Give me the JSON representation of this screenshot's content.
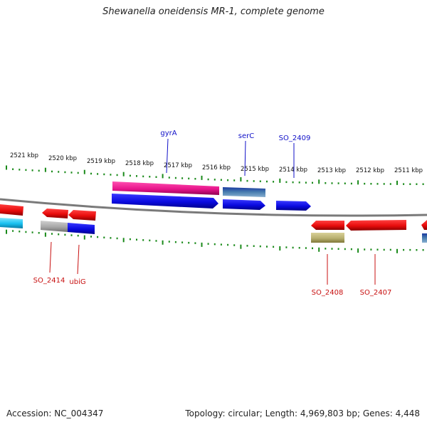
{
  "title": "Shewanella oneidensis MR-1, complete genome",
  "footer": {
    "accession": "Accession: NC_004347",
    "topology": "Topology: circular; Length: 4,969,803 bp; Genes: 4,448"
  },
  "ruler": [
    {
      "label": "2521 kbp",
      "kbp": 2521
    },
    {
      "label": "2520 kbp",
      "kbp": 2520
    },
    {
      "label": "2519 kbp",
      "kbp": 2519
    },
    {
      "label": "2518 kbp",
      "kbp": 2518
    },
    {
      "label": "2517 kbp",
      "kbp": 2517
    },
    {
      "label": "2516 kbp",
      "kbp": 2516
    },
    {
      "label": "2515 kbp",
      "kbp": 2515
    },
    {
      "label": "2514 kbp",
      "kbp": 2514
    },
    {
      "label": "2513 kbp",
      "kbp": 2513
    },
    {
      "label": "2512 kbp",
      "kbp": 2512
    },
    {
      "label": "2511 kbp",
      "kbp": 2511
    }
  ],
  "gene_labels": [
    {
      "text": "gyrA",
      "color": "#1010c8"
    },
    {
      "text": "serC",
      "color": "#1010c8"
    },
    {
      "text": "SO_2409",
      "color": "#1010c8"
    },
    {
      "text": "SO_2414",
      "color": "#c81010"
    },
    {
      "text": "ubiG",
      "color": "#c81010"
    },
    {
      "text": "SO_2408",
      "color": "#c81010"
    },
    {
      "text": "SO_2407",
      "color": "#c81010"
    }
  ],
  "colors": {
    "backbone": "#7a7a7a",
    "tick": "#1a8a1a",
    "forward_cds": "#1010e0",
    "reverse_cds": "#e01010",
    "magenta_feature": "#e8168c",
    "cyan_feature": "#18c0f0",
    "steel_feature": "#4a7fb0",
    "gray_feature": "#a8a8a8",
    "olive_feature": "#b8b070"
  }
}
